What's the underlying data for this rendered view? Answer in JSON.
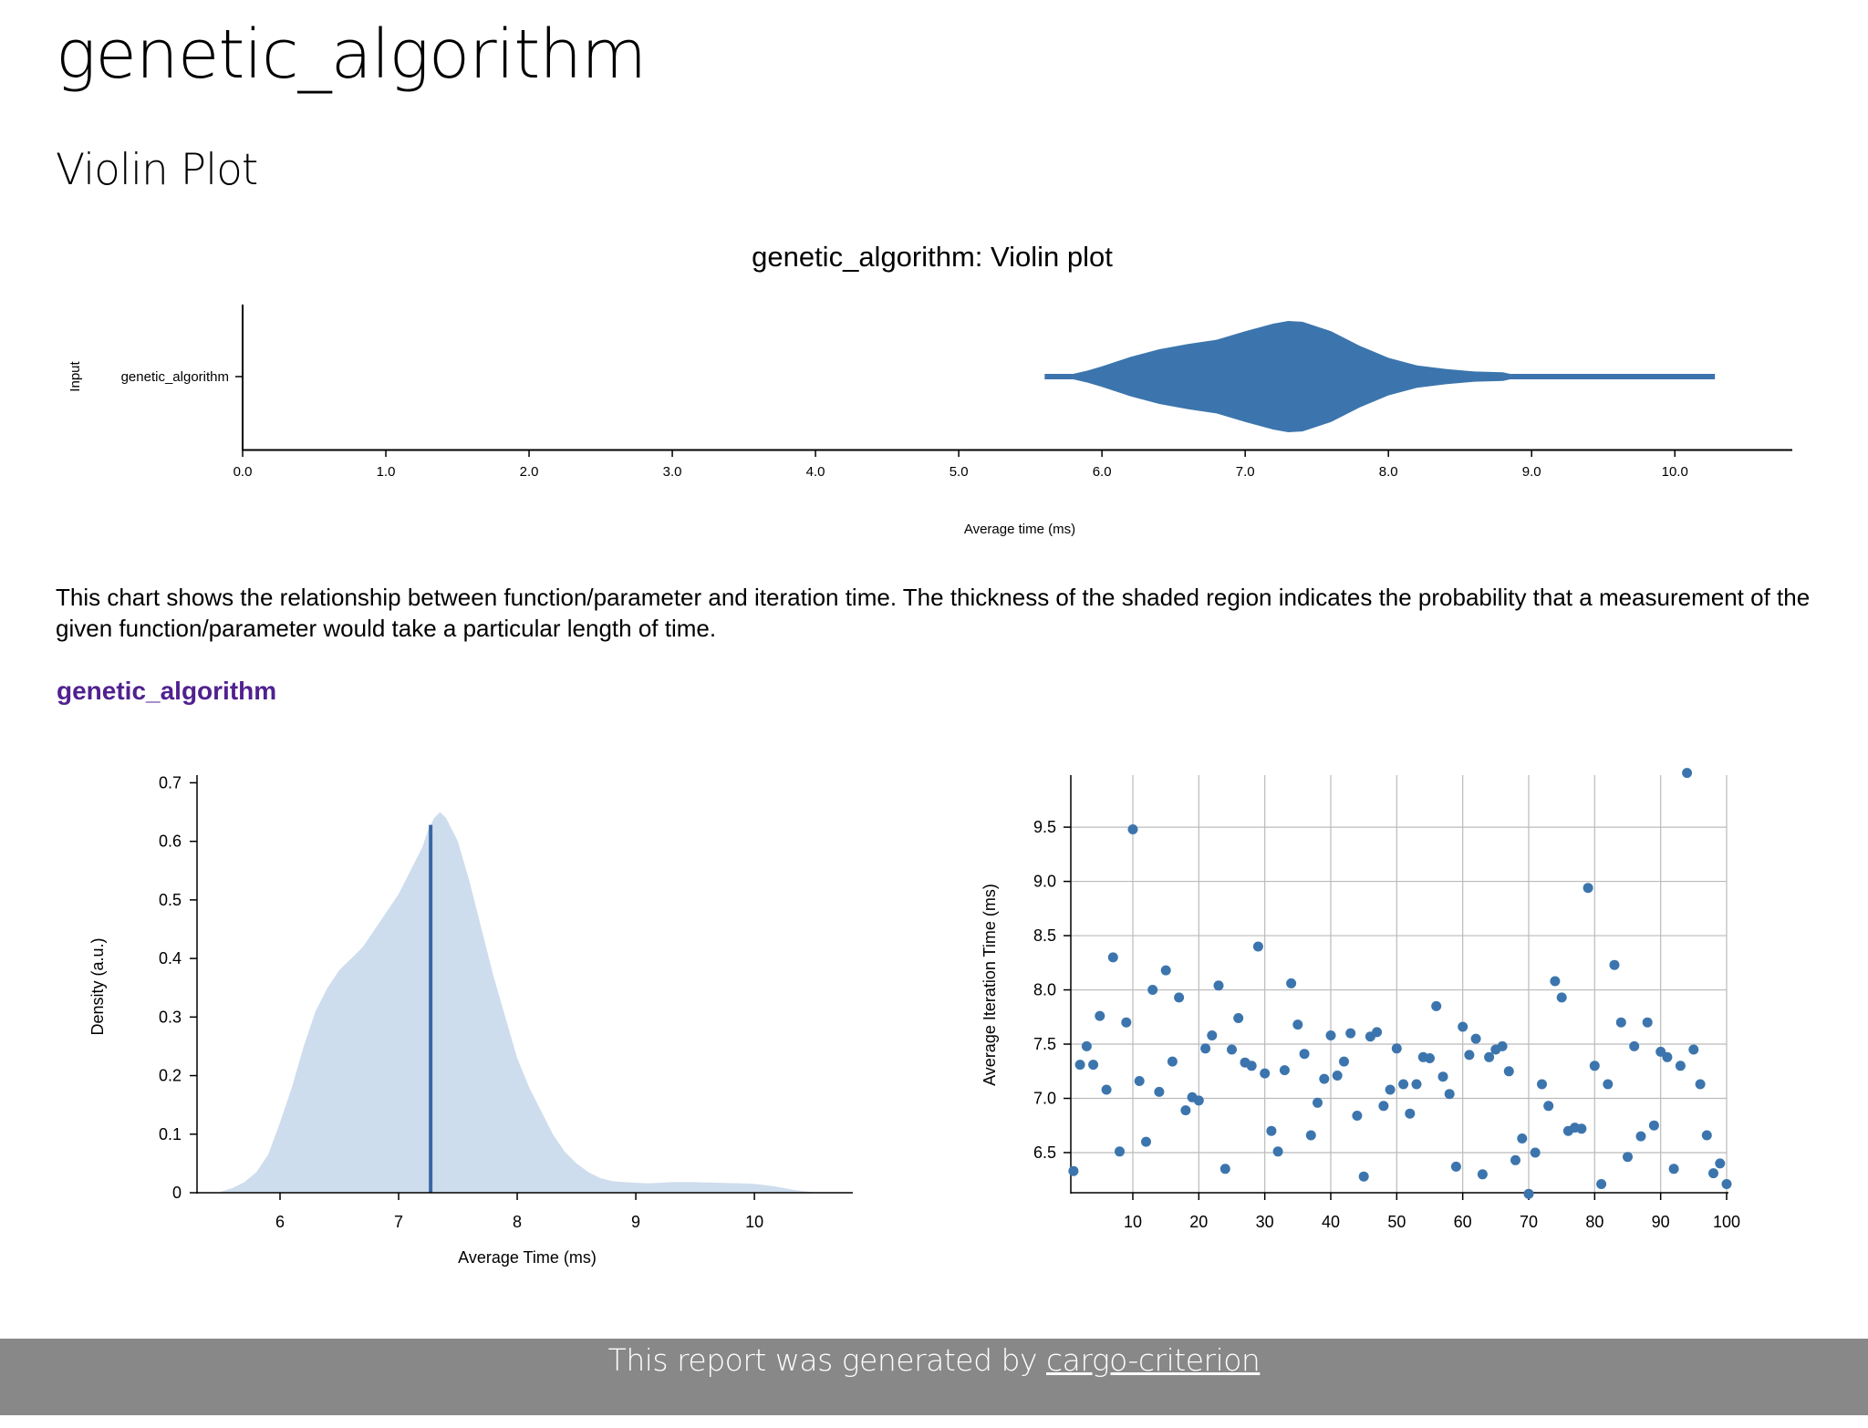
{
  "page": {
    "title": "genetic_algorithm",
    "section_title": "Violin Plot",
    "description": "This chart shows the relationship between function/parameter and iteration time. The thickness of the shaded region indicates the probability that a measurement of the given function/parameter would take a particular length of time.",
    "benchmark_link": "genetic_algorithm"
  },
  "footer": {
    "prefix": "This report was generated by ",
    "link_text": "cargo-criterion"
  },
  "colors": {
    "violin_fill": "#3c75ad",
    "pdf_fill": "#cedded",
    "mean_line": "#3967a3",
    "scatter_point": "#3c75ad",
    "link": "#50218f",
    "footer_bg": "#888888"
  },
  "chart_data": [
    {
      "type": "violin",
      "title": "genetic_algorithm: Violin plot",
      "xlabel": "Average time (ms)",
      "ylabel": "Input",
      "categories": [
        "genetic_algorithm"
      ],
      "xticks": [
        "0.0",
        "1.0",
        "2.0",
        "3.0",
        "4.0",
        "5.0",
        "6.0",
        "7.0",
        "8.0",
        "9.0",
        "10.0"
      ],
      "xlim": [
        0,
        10.82
      ],
      "density": {
        "x": [
          5.6,
          5.8,
          5.9,
          6.0,
          6.2,
          6.4,
          6.6,
          6.8,
          7.0,
          7.2,
          7.3,
          7.4,
          7.6,
          7.8,
          8.0,
          8.2,
          8.4,
          8.6,
          8.8,
          8.85,
          9.0,
          9.5,
          10.0,
          10.28
        ],
        "y": [
          0.01,
          0.03,
          0.07,
          0.12,
          0.23,
          0.32,
          0.38,
          0.43,
          0.53,
          0.62,
          0.65,
          0.64,
          0.53,
          0.36,
          0.22,
          0.13,
          0.09,
          0.06,
          0.05,
          0.03,
          0.02,
          0.02,
          0.02,
          0.01
        ]
      }
    },
    {
      "type": "area",
      "xlabel": "Average Time (ms)",
      "ylabel": "Density (a.u.)",
      "xticks": [
        "6",
        "7",
        "8",
        "9",
        "10"
      ],
      "yticks": [
        "0",
        "0.1",
        "0.2",
        "0.3",
        "0.4",
        "0.5",
        "0.6",
        "0.7"
      ],
      "xlim": [
        5.3,
        10.83
      ],
      "ylim": [
        0,
        0.71
      ],
      "mean": 7.27,
      "x": [
        5.5,
        5.6,
        5.7,
        5.8,
        5.9,
        6.0,
        6.1,
        6.2,
        6.3,
        6.4,
        6.5,
        6.6,
        6.7,
        6.8,
        6.9,
        7.0,
        7.1,
        7.2,
        7.25,
        7.3,
        7.35,
        7.4,
        7.5,
        7.6,
        7.7,
        7.8,
        7.9,
        8.0,
        8.1,
        8.2,
        8.3,
        8.4,
        8.5,
        8.6,
        8.7,
        8.8,
        8.9,
        9.0,
        9.1,
        9.2,
        9.3,
        9.5,
        9.7,
        9.9,
        10.0,
        10.1,
        10.2,
        10.3,
        10.4,
        10.5
      ],
      "y": [
        0.002,
        0.008,
        0.018,
        0.035,
        0.065,
        0.12,
        0.18,
        0.25,
        0.31,
        0.35,
        0.38,
        0.4,
        0.42,
        0.45,
        0.48,
        0.51,
        0.55,
        0.59,
        0.62,
        0.64,
        0.65,
        0.64,
        0.6,
        0.53,
        0.45,
        0.37,
        0.3,
        0.23,
        0.18,
        0.14,
        0.1,
        0.07,
        0.05,
        0.035,
        0.025,
        0.02,
        0.018,
        0.017,
        0.016,
        0.017,
        0.018,
        0.018,
        0.017,
        0.016,
        0.015,
        0.013,
        0.01,
        0.006,
        0.003,
        0.001
      ]
    },
    {
      "type": "scatter",
      "xlabel": "",
      "ylabel": "Average Iteration Time (ms)",
      "xticks": [
        "10",
        "20",
        "30",
        "40",
        "50",
        "60",
        "70",
        "80",
        "90",
        "100"
      ],
      "yticks": [
        "6.5",
        "7.0",
        "7.5",
        "8.0",
        "8.5",
        "9.0",
        "9.5"
      ],
      "xlim": [
        0.6,
        100
      ],
      "ylim": [
        6.13,
        9.98
      ],
      "grid": true,
      "x": [
        1,
        2,
        3,
        4,
        5,
        6,
        7,
        8,
        9,
        10,
        11,
        12,
        13,
        14,
        15,
        16,
        17,
        18,
        19,
        20,
        21,
        22,
        23,
        24,
        25,
        26,
        27,
        28,
        29,
        30,
        31,
        32,
        33,
        34,
        35,
        36,
        37,
        38,
        39,
        40,
        41,
        42,
        43,
        44,
        45,
        46,
        47,
        48,
        49,
        50,
        51,
        52,
        53,
        54,
        55,
        56,
        57,
        58,
        59,
        60,
        61,
        62,
        63,
        64,
        65,
        66,
        67,
        68,
        69,
        70,
        71,
        72,
        73,
        74,
        75,
        76,
        77,
        78,
        79,
        80,
        81,
        82,
        83,
        84,
        85,
        86,
        87,
        88,
        89,
        90,
        91,
        92,
        93,
        94,
        95,
        96,
        97,
        98,
        99,
        100
      ],
      "y": [
        6.33,
        7.31,
        7.48,
        7.31,
        7.76,
        7.08,
        8.3,
        6.51,
        7.7,
        9.48,
        7.16,
        6.6,
        8.0,
        7.06,
        8.18,
        7.34,
        7.93,
        6.89,
        7.01,
        6.98,
        7.46,
        7.58,
        8.04,
        6.35,
        7.45,
        7.74,
        7.33,
        7.3,
        8.4,
        7.23,
        6.7,
        6.51,
        7.26,
        8.06,
        7.68,
        7.41,
        6.66,
        6.96,
        7.18,
        7.58,
        7.21,
        7.34,
        7.6,
        6.84,
        6.28,
        7.57,
        7.61,
        6.93,
        7.08,
        7.46,
        7.13,
        6.86,
        7.13,
        7.38,
        7.37,
        7.85,
        7.2,
        7.04,
        6.37,
        7.66,
        7.4,
        7.55,
        6.3,
        7.38,
        7.45,
        7.48,
        7.25,
        6.43,
        6.63,
        6.12,
        6.5,
        7.13,
        6.93,
        8.08,
        7.93,
        6.7,
        6.73,
        6.72,
        8.94,
        7.3,
        6.21,
        7.13,
        8.23,
        7.7,
        6.46,
        7.48,
        6.65,
        7.7,
        6.75,
        7.43,
        7.38,
        6.35,
        7.3,
        10.0,
        7.45,
        7.13,
        6.66,
        6.31,
        6.4,
        6.21
      ]
    }
  ]
}
